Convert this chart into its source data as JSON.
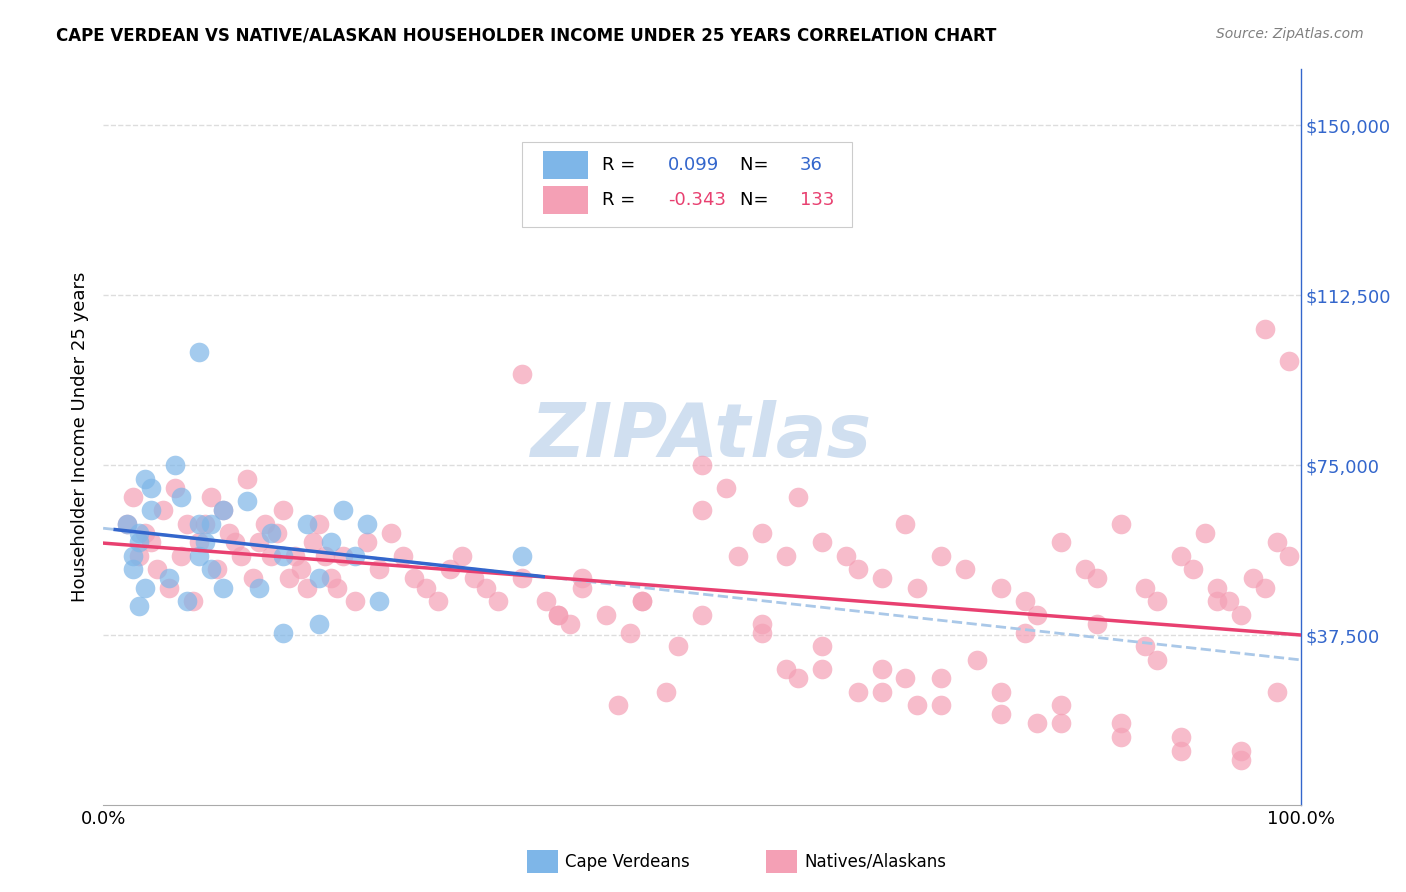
{
  "title": "CAPE VERDEAN VS NATIVE/ALASKAN HOUSEHOLDER INCOME UNDER 25 YEARS CORRELATION CHART",
  "source": "Source: ZipAtlas.com",
  "ylabel": "Householder Income Under 25 years",
  "x_tick_labels": [
    "0.0%",
    "100.0%"
  ],
  "y_tick_labels": [
    "$37,500",
    "$75,000",
    "$112,500",
    "$150,000"
  ],
  "y_tick_values": [
    37500,
    75000,
    112500,
    150000
  ],
  "xlim": [
    0.0,
    1.0
  ],
  "ylim": [
    0,
    162500
  ],
  "legend_cv_r": "0.099",
  "legend_cv_n": "36",
  "legend_na_r": "-0.343",
  "legend_na_n": "133",
  "cv_color": "#7eb6e8",
  "na_color": "#f4a0b5",
  "cv_line_color": "#3366cc",
  "na_line_color": "#e84070",
  "dashed_line_color": "#aac8e8",
  "grid_color": "#dddddd",
  "watermark_color": "#d0dff0",
  "background_color": "#ffffff",
  "cv_scatter_x": [
    0.02,
    0.025,
    0.03,
    0.025,
    0.03,
    0.035,
    0.04,
    0.035,
    0.03,
    0.04,
    0.06,
    0.055,
    0.065,
    0.07,
    0.08,
    0.08,
    0.085,
    0.09,
    0.1,
    0.12,
    0.13,
    0.14,
    0.15,
    0.15,
    0.17,
    0.18,
    0.18,
    0.19,
    0.2,
    0.21,
    0.22,
    0.23,
    0.08,
    0.09,
    0.1,
    0.35
  ],
  "cv_scatter_y": [
    62000,
    55000,
    60000,
    52000,
    58000,
    48000,
    65000,
    72000,
    44000,
    70000,
    75000,
    50000,
    68000,
    45000,
    62000,
    55000,
    58000,
    52000,
    65000,
    67000,
    48000,
    60000,
    38000,
    55000,
    62000,
    40000,
    50000,
    58000,
    65000,
    55000,
    62000,
    45000,
    100000,
    62000,
    48000,
    55000
  ],
  "na_scatter_x": [
    0.02,
    0.025,
    0.03,
    0.035,
    0.04,
    0.045,
    0.05,
    0.055,
    0.06,
    0.065,
    0.07,
    0.075,
    0.08,
    0.085,
    0.09,
    0.095,
    0.1,
    0.105,
    0.11,
    0.115,
    0.12,
    0.125,
    0.13,
    0.135,
    0.14,
    0.145,
    0.15,
    0.155,
    0.16,
    0.165,
    0.17,
    0.175,
    0.18,
    0.185,
    0.19,
    0.195,
    0.2,
    0.21,
    0.22,
    0.23,
    0.24,
    0.25,
    0.26,
    0.27,
    0.28,
    0.29,
    0.3,
    0.31,
    0.32,
    0.33,
    0.35,
    0.37,
    0.38,
    0.39,
    0.4,
    0.42,
    0.44,
    0.45,
    0.5,
    0.52,
    0.55,
    0.57,
    0.58,
    0.6,
    0.62,
    0.63,
    0.65,
    0.67,
    0.68,
    0.7,
    0.72,
    0.75,
    0.77,
    0.78,
    0.8,
    0.82,
    0.83,
    0.85,
    0.87,
    0.88,
    0.9,
    0.91,
    0.92,
    0.93,
    0.94,
    0.95,
    0.96,
    0.97,
    0.98,
    0.99,
    0.35,
    0.5,
    0.6,
    0.7,
    0.8,
    0.9,
    0.55,
    0.65,
    0.75,
    0.85,
    0.95,
    0.38,
    0.48,
    0.58,
    0.68,
    0.78,
    0.88,
    0.98,
    0.45,
    0.55,
    0.65,
    0.75,
    0.85,
    0.95,
    0.4,
    0.5,
    0.6,
    0.7,
    0.8,
    0.9,
    0.97,
    0.99,
    0.93,
    0.87,
    0.83,
    0.77,
    0.73,
    0.67,
    0.63,
    0.57,
    0.53,
    0.47,
    0.43
  ],
  "na_scatter_y": [
    62000,
    68000,
    55000,
    60000,
    58000,
    52000,
    65000,
    48000,
    70000,
    55000,
    62000,
    45000,
    58000,
    62000,
    68000,
    52000,
    65000,
    60000,
    58000,
    55000,
    72000,
    50000,
    58000,
    62000,
    55000,
    60000,
    65000,
    50000,
    55000,
    52000,
    48000,
    58000,
    62000,
    55000,
    50000,
    48000,
    55000,
    45000,
    58000,
    52000,
    60000,
    55000,
    50000,
    48000,
    45000,
    52000,
    55000,
    50000,
    48000,
    45000,
    50000,
    45000,
    42000,
    40000,
    48000,
    42000,
    38000,
    45000,
    65000,
    70000,
    60000,
    55000,
    68000,
    58000,
    55000,
    52000,
    50000,
    62000,
    48000,
    55000,
    52000,
    48000,
    45000,
    42000,
    58000,
    52000,
    50000,
    62000,
    48000,
    45000,
    55000,
    52000,
    60000,
    48000,
    45000,
    42000,
    50000,
    48000,
    58000,
    55000,
    95000,
    75000,
    30000,
    22000,
    18000,
    12000,
    40000,
    25000,
    20000,
    15000,
    10000,
    42000,
    35000,
    28000,
    22000,
    18000,
    32000,
    25000,
    45000,
    38000,
    30000,
    25000,
    18000,
    12000,
    50000,
    42000,
    35000,
    28000,
    22000,
    15000,
    105000,
    98000,
    45000,
    35000,
    40000,
    38000,
    32000,
    28000,
    25000,
    30000,
    55000,
    25000,
    22000
  ]
}
